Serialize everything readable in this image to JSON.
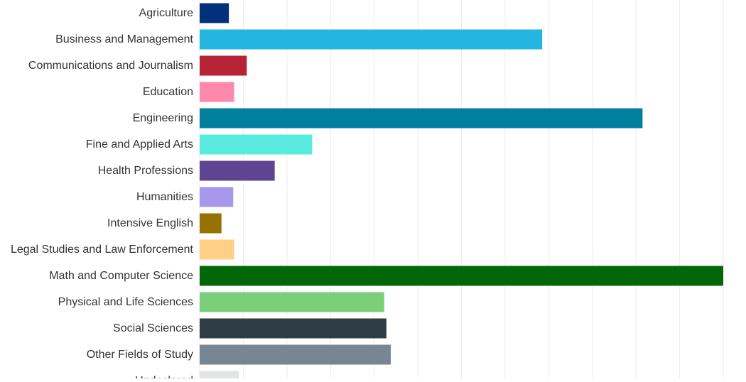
{
  "chart_data": {
    "type": "bar",
    "orientation": "horizontal",
    "title": "",
    "xlabel": "",
    "ylabel": "",
    "grid": true,
    "xlim": [
      0,
      12
    ],
    "categories": [
      "Agriculture",
      "Business and Management",
      "Communications and Journalism",
      "Education",
      "Engineering",
      "Fine and Applied Arts",
      "Health Professions",
      "Humanities",
      "Intensive English",
      "Legal Studies and Law Enforcement",
      "Math and Computer Science",
      "Physical and Life Sciences",
      "Social Sciences",
      "Other Fields of Study",
      "Undeclared"
    ],
    "values": [
      0.67,
      7.85,
      1.08,
      0.79,
      10.15,
      2.58,
      1.72,
      0.77,
      0.5,
      0.79,
      12.0,
      4.23,
      4.28,
      4.38,
      0.9
    ],
    "colors": [
      "#00317a",
      "#25b5e1",
      "#b72235",
      "#ff89ac",
      "#007f9f",
      "#5aebe0",
      "#5e4592",
      "#a898ec",
      "#967001",
      "#ffcf85",
      "#016708",
      "#7bcf79",
      "#2e3c45",
      "#788592",
      "#e2e5e8"
    ]
  }
}
